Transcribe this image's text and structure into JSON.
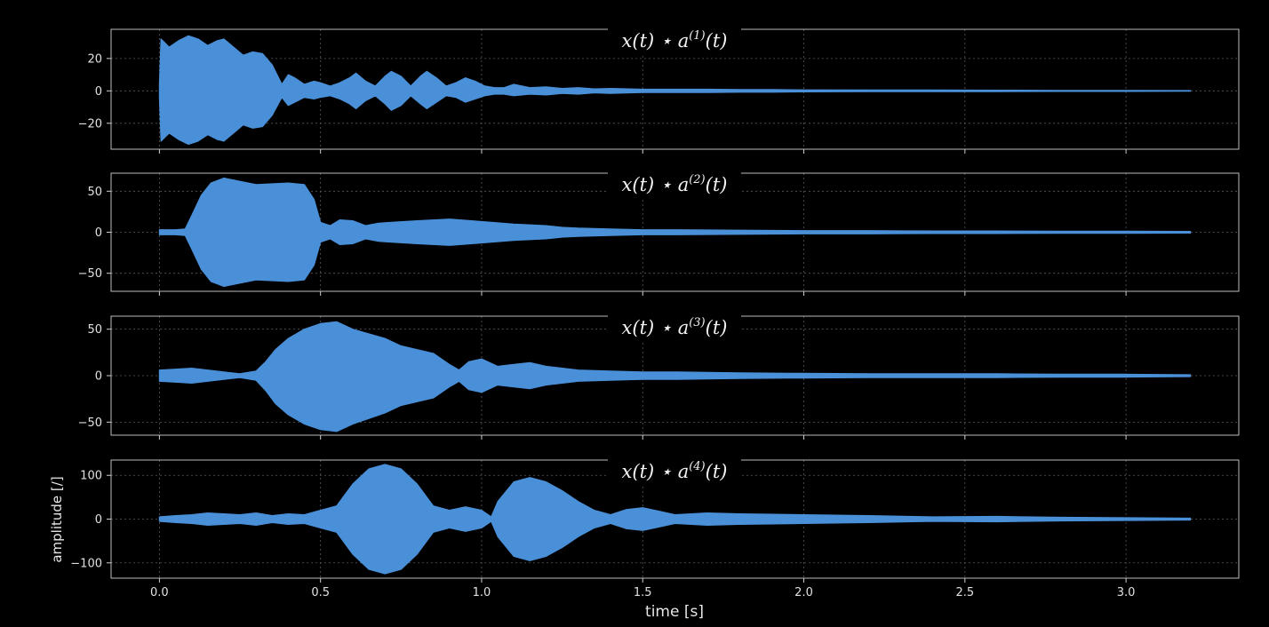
{
  "chart_data": [
    {
      "type": "area",
      "title": "x(t) ⋆ a(1)(t)",
      "title_parts": {
        "lhs": "x(t) ⋆ a",
        "sup": "(1)",
        "rhs": "(t)"
      },
      "xlim": [
        -0.15,
        3.35
      ],
      "ylim": [
        -36,
        38
      ],
      "yticks": [
        20,
        0,
        -20
      ],
      "ytick_labels": [
        "20",
        "0",
        "−20"
      ],
      "xticks": [
        0.0,
        0.5,
        1.0,
        1.5,
        2.0,
        2.5,
        3.0
      ],
      "grid": true,
      "color": "#4a90d9",
      "envelope": {
        "t": [
          0.0,
          0.005,
          0.03,
          0.06,
          0.09,
          0.12,
          0.15,
          0.18,
          0.2,
          0.23,
          0.26,
          0.29,
          0.32,
          0.35,
          0.38,
          0.4,
          0.42,
          0.45,
          0.48,
          0.5,
          0.53,
          0.56,
          0.59,
          0.61,
          0.64,
          0.67,
          0.7,
          0.72,
          0.75,
          0.78,
          0.81,
          0.83,
          0.86,
          0.89,
          0.92,
          0.95,
          0.98,
          1.01,
          1.04,
          1.07,
          1.1,
          1.15,
          1.2,
          1.25,
          1.3,
          1.35,
          1.4,
          1.5,
          1.6,
          1.7,
          1.8,
          1.9,
          2.0,
          2.2,
          2.4,
          2.6,
          2.8,
          3.0,
          3.2
        ],
        "upper": [
          4,
          32,
          27,
          31,
          34,
          32,
          28,
          31,
          32,
          27,
          22,
          24,
          23,
          16,
          4,
          10,
          8,
          4,
          6,
          5,
          3,
          5,
          8,
          11,
          6,
          3,
          9,
          12,
          9,
          3,
          9,
          12,
          8,
          3,
          5,
          8,
          6,
          3,
          2,
          2,
          4,
          2,
          2.5,
          1.5,
          2,
          1.2,
          1.5,
          1,
          1,
          1,
          0.8,
          0.8,
          0.6,
          0.5,
          0.5,
          0.4,
          0.3,
          0.3,
          0.2
        ],
        "lower": [
          -4,
          -31,
          -26,
          -30,
          -33,
          -31,
          -27,
          -30,
          -31,
          -26,
          -21,
          -23,
          -22,
          -15,
          -4,
          -9,
          -7,
          -4,
          -5,
          -4,
          -3,
          -5,
          -8,
          -11,
          -6,
          -3,
          -8,
          -12,
          -9,
          -3,
          -8,
          -11,
          -7,
          -3,
          -4,
          -7,
          -5,
          -3,
          -2,
          -2,
          -3,
          -2,
          -2.5,
          -1.5,
          -2,
          -1.2,
          -1.5,
          -1,
          -1,
          -1,
          -0.8,
          -0.8,
          -0.6,
          -0.5,
          -0.5,
          -0.4,
          -0.3,
          -0.3,
          -0.2
        ]
      }
    },
    {
      "type": "area",
      "title": "x(t) ⋆ a(2)(t)",
      "title_parts": {
        "lhs": "x(t) ⋆ a",
        "sup": "(2)",
        "rhs": "(t)"
      },
      "xlim": [
        -0.15,
        3.35
      ],
      "ylim": [
        -72,
        72
      ],
      "yticks": [
        50,
        0,
        -50
      ],
      "ytick_labels": [
        "50",
        "0",
        "−50"
      ],
      "xticks": [
        0.0,
        0.5,
        1.0,
        1.5,
        2.0,
        2.5,
        3.0
      ],
      "grid": true,
      "color": "#4a90d9",
      "envelope": {
        "t": [
          0.0,
          0.05,
          0.08,
          0.1,
          0.13,
          0.16,
          0.2,
          0.25,
          0.3,
          0.35,
          0.4,
          0.45,
          0.48,
          0.5,
          0.53,
          0.56,
          0.6,
          0.64,
          0.68,
          0.72,
          0.8,
          0.9,
          1.0,
          1.1,
          1.2,
          1.25,
          1.3,
          1.4,
          1.5,
          1.6,
          1.8,
          2.0,
          2.2,
          2.4,
          2.6,
          2.8,
          3.0,
          3.2
        ],
        "upper": [
          3,
          3,
          4,
          20,
          45,
          60,
          66,
          62,
          58,
          59,
          60,
          58,
          40,
          12,
          8,
          15,
          14,
          8,
          11,
          12,
          14,
          16,
          13,
          10,
          8,
          6,
          5,
          4,
          3,
          3,
          2.5,
          2,
          2,
          1.5,
          1.5,
          1.2,
          1.2,
          1
        ],
        "lower": [
          -3,
          -3,
          -4,
          -20,
          -45,
          -60,
          -66,
          -62,
          -58,
          -59,
          -60,
          -58,
          -40,
          -12,
          -8,
          -15,
          -14,
          -8,
          -11,
          -12,
          -14,
          -16,
          -13,
          -10,
          -8,
          -6,
          -5,
          -4,
          -3,
          -3,
          -2.5,
          -2,
          -2,
          -1.5,
          -1.5,
          -1.2,
          -1.2,
          -1
        ]
      }
    },
    {
      "type": "area",
      "title": "x(t) ⋆ a(3)(t)",
      "title_parts": {
        "lhs": "x(t) ⋆ a",
        "sup": "(3)",
        "rhs": "(t)"
      },
      "xlim": [
        -0.15,
        3.35
      ],
      "ylim": [
        -64,
        64
      ],
      "yticks": [
        50,
        0,
        -50
      ],
      "ytick_labels": [
        "50",
        "0",
        "−50"
      ],
      "xticks": [
        0.0,
        0.5,
        1.0,
        1.5,
        2.0,
        2.5,
        3.0
      ],
      "grid": true,
      "color": "#4a90d9",
      "envelope": {
        "t": [
          0.0,
          0.05,
          0.1,
          0.15,
          0.2,
          0.25,
          0.3,
          0.33,
          0.36,
          0.4,
          0.45,
          0.5,
          0.55,
          0.6,
          0.65,
          0.7,
          0.75,
          0.8,
          0.85,
          0.9,
          0.93,
          0.96,
          1.0,
          1.05,
          1.1,
          1.15,
          1.2,
          1.3,
          1.4,
          1.5,
          1.6,
          1.8,
          2.0,
          2.2,
          2.4,
          2.6,
          2.8,
          3.0,
          3.2
        ],
        "upper": [
          6,
          7,
          8,
          6,
          4,
          2,
          5,
          15,
          28,
          40,
          50,
          56,
          58,
          50,
          45,
          40,
          32,
          28,
          24,
          12,
          6,
          15,
          18,
          10,
          12,
          14,
          10,
          6,
          5,
          4,
          4,
          3,
          2.5,
          2,
          2,
          2,
          1.5,
          1.5,
          1
        ],
        "lower": [
          -6,
          -7,
          -8,
          -6,
          -4,
          -2,
          -5,
          -16,
          -30,
          -42,
          -52,
          -58,
          -60,
          -52,
          -46,
          -40,
          -32,
          -28,
          -24,
          -12,
          -6,
          -15,
          -18,
          -10,
          -12,
          -14,
          -10,
          -6,
          -5,
          -4,
          -4,
          -3,
          -2.5,
          -2,
          -2,
          -2,
          -1.5,
          -1.5,
          -1
        ]
      }
    },
    {
      "type": "area",
      "title": "x(t) ⋆ a(4)(t)",
      "title_parts": {
        "lhs": "x(t) ⋆ a",
        "sup": "(4)",
        "rhs": "(t)"
      },
      "xlim": [
        -0.15,
        3.35
      ],
      "xlabel": "time [s]",
      "ylabel": "amplitude [/]",
      "ylim": [
        -135,
        135
      ],
      "yticks": [
        100,
        0,
        -100
      ],
      "ytick_labels": [
        "100",
        "0",
        "−100"
      ],
      "xticks": [
        0.0,
        0.5,
        1.0,
        1.5,
        2.0,
        2.5,
        3.0
      ],
      "xtick_labels": [
        "0.0",
        "0.5",
        "1.0",
        "1.5",
        "2.0",
        "2.5",
        "3.0"
      ],
      "grid": true,
      "color": "#4a90d9",
      "envelope": {
        "t": [
          0.0,
          0.05,
          0.1,
          0.15,
          0.2,
          0.25,
          0.3,
          0.35,
          0.4,
          0.45,
          0.5,
          0.55,
          0.6,
          0.65,
          0.7,
          0.75,
          0.8,
          0.85,
          0.9,
          0.95,
          1.0,
          1.03,
          1.05,
          1.1,
          1.15,
          1.2,
          1.25,
          1.3,
          1.35,
          1.4,
          1.45,
          1.5,
          1.55,
          1.6,
          1.7,
          1.8,
          2.0,
          2.2,
          2.4,
          2.6,
          2.8,
          3.0,
          3.2
        ],
        "upper": [
          5,
          8,
          10,
          14,
          12,
          10,
          14,
          8,
          12,
          10,
          20,
          30,
          80,
          115,
          125,
          115,
          80,
          30,
          20,
          28,
          20,
          5,
          40,
          85,
          95,
          85,
          65,
          40,
          20,
          10,
          22,
          26,
          18,
          10,
          14,
          12,
          10,
          8,
          5,
          6,
          4,
          3,
          2
        ],
        "lower": [
          -5,
          -8,
          -10,
          -14,
          -12,
          -10,
          -14,
          -8,
          -12,
          -10,
          -20,
          -30,
          -80,
          -115,
          -125,
          -115,
          -80,
          -30,
          -20,
          -28,
          -20,
          -5,
          -40,
          -85,
          -95,
          -85,
          -65,
          -40,
          -20,
          -10,
          -22,
          -26,
          -18,
          -10,
          -14,
          -12,
          -10,
          -8,
          -5,
          -6,
          -4,
          -3,
          -2
        ]
      }
    }
  ]
}
